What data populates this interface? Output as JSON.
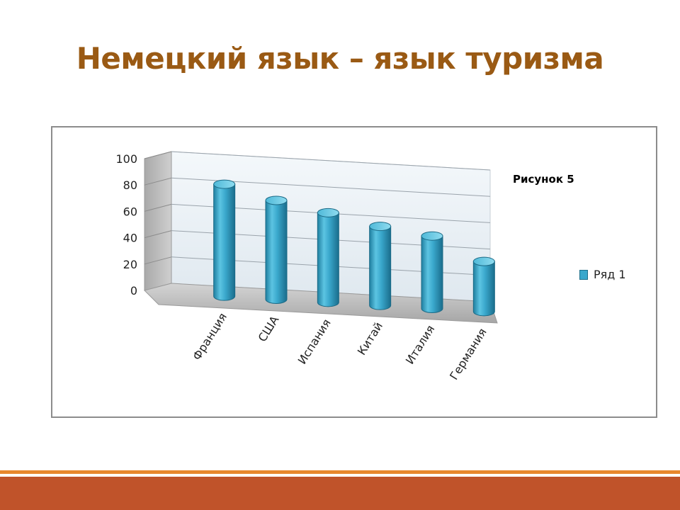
{
  "slide": {
    "title": "Немецкий язык – язык туризма"
  },
  "chart_data": {
    "type": "bar",
    "style": "3d-cylinder",
    "title": "Рисунок 5",
    "categories": [
      "Франция",
      "США",
      "Испания",
      "Китай",
      "Италия",
      "Германия"
    ],
    "series": [
      {
        "name": "Ряд 1",
        "values": [
          85,
          75,
          68,
          60,
          55,
          38
        ],
        "color": "#3aa8cc"
      }
    ],
    "yticks": [
      0,
      20,
      40,
      60,
      80,
      100
    ],
    "ylim": [
      0,
      100
    ],
    "grid": true,
    "legend": "right"
  },
  "colors": {
    "title": "#9a5a14",
    "bar": "#3aa8cc",
    "footer_line": "#e8882e",
    "footer_bar": "#c0532a"
  }
}
